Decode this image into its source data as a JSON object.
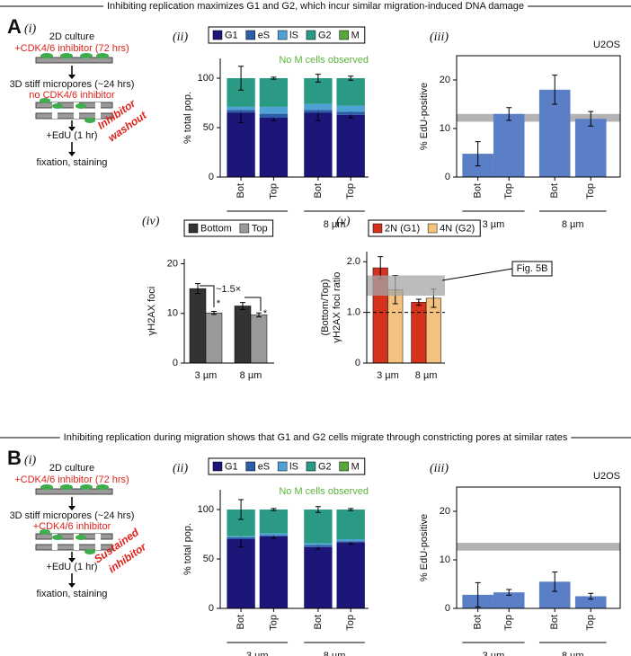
{
  "headers": [
    "Inhibiting replication maximizes G1 and G2, which incur similar migration-induced DNA damage",
    "Inhibiting replication during migration shows that G1 and G2 cells migrate through constricting pores at similar rates"
  ],
  "schematics": [
    {
      "panel": "A",
      "sub": "(i)",
      "steps": [
        "2D culture",
        "+CDK4/6 inhibitor (72 hrs)",
        "3D stiff micropores (~24 hrs)",
        "no CDK4/6 inhibitor",
        "+EdU (1 hr)",
        "fixation, staining"
      ],
      "side_note": [
        "Inhibitor",
        "washout"
      ]
    },
    {
      "panel": "B",
      "sub": "(i)",
      "steps": [
        "2D culture",
        "+CDK4/6 inhibitor (72 hrs)",
        "3D stiff micropores (~24 hrs)",
        "+CDK4/6 inhibitor",
        "+EdU (1 hr)",
        "fixation, staining"
      ],
      "side_note": [
        "Sustained",
        "inhibitor"
      ]
    }
  ],
  "chart_data": [
    {
      "type": "stacked_bar",
      "panel_label": "(ii)",
      "ylabel": "% total pop.",
      "note": "No M cells observed",
      "note_color": "#5cb33b",
      "categories": [
        "Bot",
        "Top",
        "Bot",
        "Top"
      ],
      "group_labels": [
        "3 µm",
        "8 µm"
      ],
      "ylim": [
        0,
        120
      ],
      "yticks": [
        0,
        50,
        100
      ],
      "series": [
        {
          "name": "G1",
          "color": "#1c1678",
          "values": [
            65,
            60,
            65,
            63
          ],
          "errors": [
            10,
            3,
            8,
            3
          ]
        },
        {
          "name": "eS",
          "color": "#2d5da6",
          "values": [
            3,
            4,
            3,
            3
          ]
        },
        {
          "name": "lS",
          "color": "#4fa3d4",
          "values": [
            3,
            7,
            6,
            6
          ]
        },
        {
          "name": "G2",
          "color": "#2a9a85",
          "values": [
            29,
            29,
            26,
            28
          ],
          "errors": [
            12,
            1,
            4,
            2
          ]
        },
        {
          "name": "M",
          "color": "#5aa83c",
          "values": [
            0,
            0,
            0,
            0
          ]
        }
      ]
    },
    {
      "type": "bar",
      "panel_label": "(iii)",
      "ylabel": "% EdU-positive",
      "label": "U2OS",
      "categories": [
        "Bot",
        "Top",
        "Bot",
        "Top"
      ],
      "group_labels": [
        "3 µm",
        "8 µm"
      ],
      "values": [
        4.8,
        13,
        18,
        12
      ],
      "errors": [
        2.5,
        1.3,
        3,
        1.5
      ],
      "color": "#5b7fc7",
      "reference": {
        "value": 12.2,
        "error": 0.8,
        "color": "#b3b3b3"
      },
      "ylim": [
        0,
        25
      ],
      "yticks": [
        0,
        10,
        20
      ]
    },
    {
      "type": "grouped_bar",
      "panel_label": "(iv)",
      "ylabel": "γH2AX foci",
      "categories": [
        "3 µm",
        "8 µm"
      ],
      "series": [
        {
          "name": "Bottom",
          "color": "#333333",
          "values": [
            15,
            11.5
          ],
          "errors": [
            1,
            0.7
          ]
        },
        {
          "name": "Top",
          "color": "#999999",
          "values": [
            10.1,
            9.7
          ],
          "errors": [
            0.3,
            0.4
          ]
        }
      ],
      "annotations": [
        "~1.5×",
        "*",
        "*"
      ],
      "ylim": [
        0,
        21
      ],
      "yticks": [
        0,
        10,
        20
      ]
    },
    {
      "type": "grouped_bar",
      "panel_label": "(v)",
      "ylabel": [
        "(Bottom/Top)",
        "γH2AX foci ratio"
      ],
      "categories": [
        "3 µm",
        "8 µm"
      ],
      "series": [
        {
          "name": "2N (G1)",
          "color": "#d4321c",
          "values": [
            1.88,
            1.2
          ],
          "errors": [
            0.22,
            0.06
          ]
        },
        {
          "name": "4N (G2)",
          "color": "#f3c27f",
          "values": [
            1.45,
            1.28
          ],
          "errors": [
            0.28,
            0.18
          ]
        }
      ],
      "reference": {
        "value": 1.53,
        "error": 0.2,
        "color": "#a6a6a6"
      },
      "ref_line": 1,
      "annotations": [
        "Fig. 5B"
      ],
      "ylim": [
        0,
        2.2
      ],
      "yticks": [
        0,
        {
          "value": 1,
          "label": "1.0"
        },
        {
          "value": 2,
          "label": "2.0"
        }
      ]
    },
    {
      "type": "stacked_bar",
      "panel_label": "(ii)",
      "ylabel": "% total pop.",
      "note": "No M cells observed",
      "note_color": "#5cb33b",
      "categories": [
        "Bot",
        "Top",
        "Bot",
        "Top"
      ],
      "group_labels": [
        "3 µm",
        "8 µm"
      ],
      "ylim": [
        0,
        120
      ],
      "yticks": [
        0,
        50,
        100
      ],
      "series": [
        {
          "name": "G1",
          "color": "#1c1678",
          "values": [
            70,
            73,
            62,
            67
          ],
          "errors": [
            8,
            2,
            2,
            2
          ]
        },
        {
          "name": "eS",
          "color": "#2d5da6",
          "values": [
            2,
            1,
            2,
            1
          ]
        },
        {
          "name": "lS",
          "color": "#4fa3d4",
          "values": [
            1,
            2,
            2,
            2
          ]
        },
        {
          "name": "G2",
          "color": "#2a9a85",
          "values": [
            27,
            24,
            34,
            30
          ],
          "errors": [
            10,
            1,
            3,
            1
          ]
        },
        {
          "name": "M",
          "color": "#5aa83c",
          "values": [
            0,
            0,
            0,
            0
          ]
        }
      ]
    },
    {
      "type": "bar",
      "panel_label": "(iii)",
      "ylabel": "% EdU-positive",
      "label": "U2OS",
      "categories": [
        "Bot",
        "Top",
        "Bot",
        "Top"
      ],
      "group_labels": [
        "3 µm",
        "8 µm"
      ],
      "values": [
        2.8,
        3.3,
        5.5,
        2.5
      ],
      "errors": [
        2.5,
        0.6,
        2,
        0.6
      ],
      "color": "#5b7fc7",
      "reference": {
        "value": 12.7,
        "error": 0.8,
        "color": "#b3b3b3"
      },
      "ylim": [
        0,
        25
      ],
      "yticks": [
        0,
        10,
        20
      ]
    }
  ]
}
